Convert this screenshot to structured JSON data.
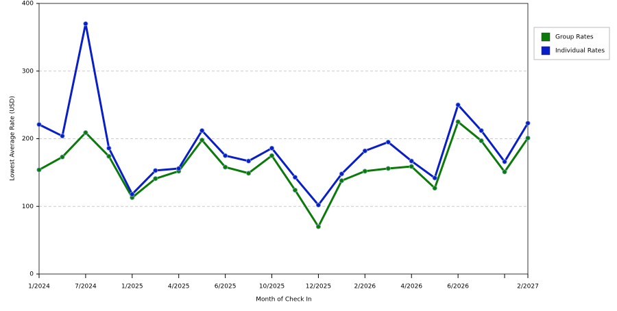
{
  "chart_data": {
    "type": "line",
    "x_label": "Month of Check In",
    "y_label": "Lowest Average Rate (USD)",
    "categories": [
      "1/2024",
      null,
      "7/2024",
      null,
      "1/2025",
      null,
      "4/2025",
      null,
      "6/2025",
      null,
      "10/2025",
      null,
      "12/2025",
      null,
      "2/2026",
      null,
      "4/2026",
      null,
      "6/2026",
      null,
      null,
      "2/2027"
    ],
    "series": [
      {
        "name": "Group Rates",
        "color": "#0b7a0b",
        "values": [
          154,
          173,
          209,
          174,
          113,
          141,
          152,
          198,
          158,
          149,
          175,
          124,
          70,
          138,
          152,
          156,
          159,
          127,
          225,
          197,
          151,
          201
        ]
      },
      {
        "name": "Individual Rates",
        "color": "#0a1ec8",
        "values": [
          221,
          204,
          370,
          186,
          118,
          153,
          156,
          212,
          175,
          167,
          186,
          143,
          102,
          148,
          182,
          195,
          167,
          142,
          250,
          212,
          166,
          223
        ]
      }
    ],
    "ylim": [
      0,
      400
    ],
    "yticks": [
      0,
      100,
      200,
      300,
      400
    ],
    "grid": true,
    "legend": "right"
  }
}
